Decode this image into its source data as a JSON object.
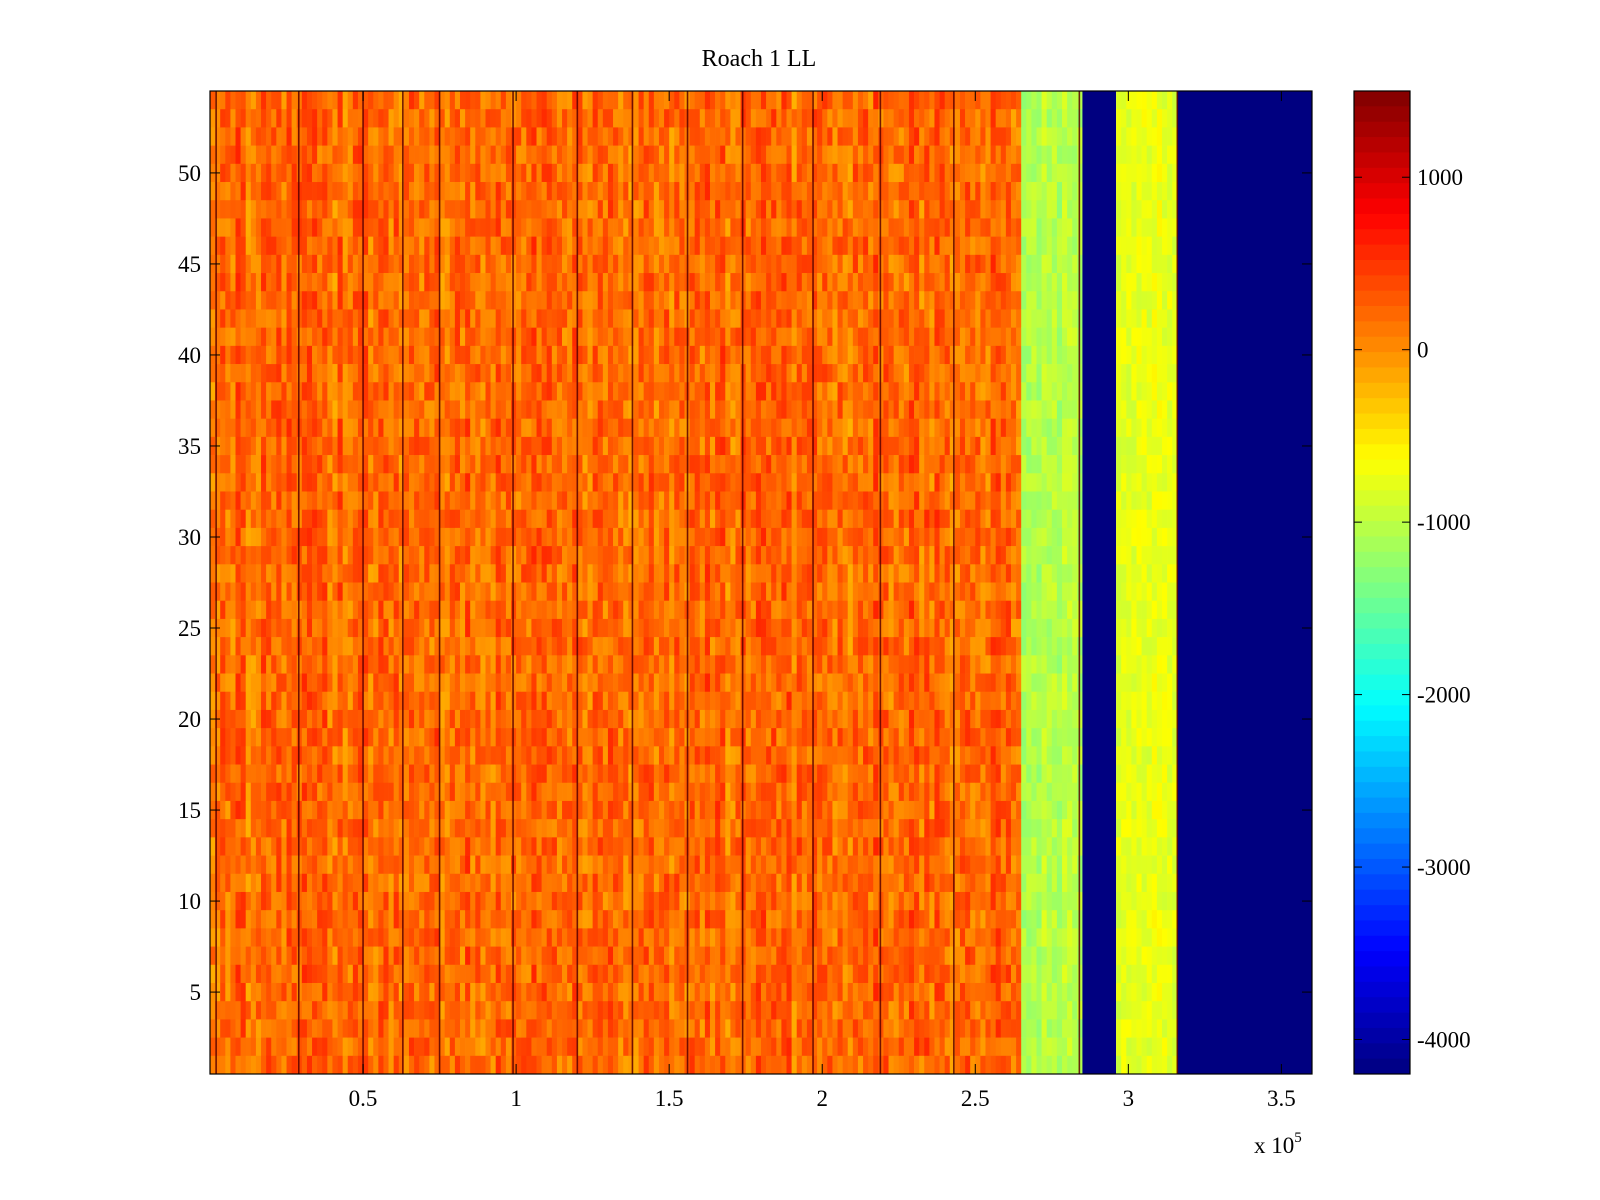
{
  "chart_data": {
    "type": "heatmap",
    "title": "Roach 1 LL",
    "xlabel": "",
    "ylabel": "",
    "colormap": "jet",
    "xlim": [
      0,
      360000
    ],
    "ylim": [
      0.5,
      54.5
    ],
    "x_ticks": [
      {
        "value": 50000,
        "label": "0.5"
      },
      {
        "value": 100000,
        "label": "1"
      },
      {
        "value": 150000,
        "label": "1.5"
      },
      {
        "value": 200000,
        "label": "2"
      },
      {
        "value": 250000,
        "label": "2.5"
      },
      {
        "value": 300000,
        "label": "3"
      },
      {
        "value": 350000,
        "label": "3.5"
      }
    ],
    "x_multiplier": {
      "base": "x 10",
      "exponent": "5"
    },
    "y_ticks": [
      {
        "value": 5,
        "label": "5"
      },
      {
        "value": 10,
        "label": "10"
      },
      {
        "value": 15,
        "label": "15"
      },
      {
        "value": 20,
        "label": "20"
      },
      {
        "value": 25,
        "label": "25"
      },
      {
        "value": 30,
        "label": "30"
      },
      {
        "value": 35,
        "label": "35"
      },
      {
        "value": 40,
        "label": "40"
      },
      {
        "value": 45,
        "label": "45"
      },
      {
        "value": 50,
        "label": "50"
      }
    ],
    "colorbar": {
      "clim": [
        -4200,
        1500
      ],
      "ticks": [
        {
          "value": 1000,
          "label": "1000"
        },
        {
          "value": 0,
          "label": "0"
        },
        {
          "value": -1000,
          "label": "-1000"
        },
        {
          "value": -2000,
          "label": "-2000"
        },
        {
          "value": -3000,
          "label": "-3000"
        },
        {
          "value": -4000,
          "label": "-4000"
        }
      ]
    },
    "regions": [
      {
        "x_start": 0,
        "x_end": 265000,
        "mean_value": 200,
        "spread": 550
      },
      {
        "x_start": 265000,
        "x_end": 285000,
        "mean_value": -1050,
        "spread": 350
      },
      {
        "x_start": 285000,
        "x_end": 296000,
        "mean_value": -4200,
        "spread": 0
      },
      {
        "x_start": 296000,
        "x_end": 316000,
        "mean_value": -750,
        "spread": 300
      },
      {
        "x_start": 316000,
        "x_end": 360000,
        "mean_value": -4200,
        "spread": 0
      }
    ],
    "dark_lines_x": [
      2000,
      29000,
      50000,
      63000,
      75000,
      99000,
      120000,
      138000,
      156000,
      174000,
      197000,
      219000,
      243000,
      284000,
      316000
    ]
  }
}
